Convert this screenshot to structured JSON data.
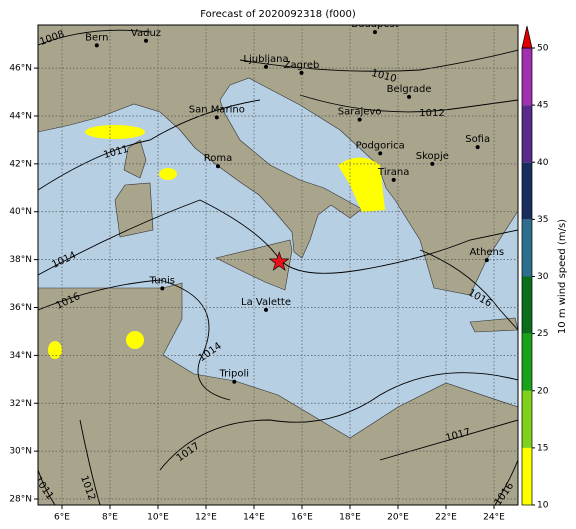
{
  "map": {
    "title": "Forecast of 2020092318 (f000)",
    "lonlim": [
      5,
      25
    ],
    "latlim": [
      27.75,
      47.8
    ],
    "xticks": [
      {
        "value": 6,
        "label": "6°E"
      },
      {
        "value": 8,
        "label": "8°E"
      },
      {
        "value": 10,
        "label": "10°E"
      },
      {
        "value": 12,
        "label": "12°E"
      },
      {
        "value": 14,
        "label": "14°E"
      },
      {
        "value": 16,
        "label": "16°E"
      },
      {
        "value": 18,
        "label": "18°E"
      },
      {
        "value": 20,
        "label": "20°E"
      },
      {
        "value": 22,
        "label": "22°E"
      },
      {
        "value": 24,
        "label": "24°E"
      }
    ],
    "yticks": [
      {
        "value": 28,
        "label": "28°N"
      },
      {
        "value": 30,
        "label": "30°N"
      },
      {
        "value": 32,
        "label": "32°N"
      },
      {
        "value": 34,
        "label": "34°N"
      },
      {
        "value": 36,
        "label": "36°N"
      },
      {
        "value": 38,
        "label": "38°N"
      },
      {
        "value": 40,
        "label": "40°N"
      },
      {
        "value": 42,
        "label": "42°N"
      },
      {
        "value": 44,
        "label": "44°N"
      },
      {
        "value": 46,
        "label": "46°N"
      }
    ],
    "grid": true,
    "cities": [
      {
        "name": "Bern",
        "lon": 7.45,
        "lat": 46.95
      },
      {
        "name": "Vaduz",
        "lon": 9.5,
        "lat": 47.14
      },
      {
        "name": "Budapest",
        "lon": 19.04,
        "lat": 47.5
      },
      {
        "name": "Ljubljana",
        "lon": 14.5,
        "lat": 46.05
      },
      {
        "name": "Zagreb",
        "lon": 15.98,
        "lat": 45.8
      },
      {
        "name": "Belgrade",
        "lon": 20.46,
        "lat": 44.8
      },
      {
        "name": "San Marino",
        "lon": 12.45,
        "lat": 43.94
      },
      {
        "name": "Sarajevo",
        "lon": 18.4,
        "lat": 43.85
      },
      {
        "name": "Sofia",
        "lon": 23.32,
        "lat": 42.7
      },
      {
        "name": "Podgorica",
        "lon": 19.26,
        "lat": 42.44
      },
      {
        "name": "Skopje",
        "lon": 21.43,
        "lat": 42.0
      },
      {
        "name": "Roma",
        "lon": 12.5,
        "lat": 41.9
      },
      {
        "name": "Tirana",
        "lon": 19.82,
        "lat": 41.33
      },
      {
        "name": "Athens",
        "lon": 23.7,
        "lat": 37.98
      },
      {
        "name": "Tunis",
        "lon": 10.18,
        "lat": 36.8
      },
      {
        "name": "La Valette",
        "lon": 14.5,
        "lat": 35.9
      },
      {
        "name": "Tripoli",
        "lon": 13.18,
        "lat": 32.9
      }
    ],
    "marker": {
      "lon": 15.05,
      "lat": 37.9,
      "color": "#e8101a"
    },
    "isobar_labels": [
      "1008",
      "1010",
      "1012",
      "1011",
      "1014",
      "1016",
      "1014",
      "1016",
      "1017",
      "1017",
      "1012",
      "1011",
      "1016"
    ],
    "colorbar": {
      "label": "10 m wind speed (m/s)",
      "lim": [
        10,
        50
      ],
      "ticks": [
        10,
        15,
        20,
        25,
        30,
        35,
        40,
        45,
        50
      ],
      "colors": [
        "#ffff00",
        "#7fd11a",
        "#1aa31a",
        "#0a6e1a",
        "#2e6e8e",
        "#1a2e5e",
        "#5a2a8a",
        "#a030b0"
      ],
      "extend_color": "#e00000"
    }
  }
}
